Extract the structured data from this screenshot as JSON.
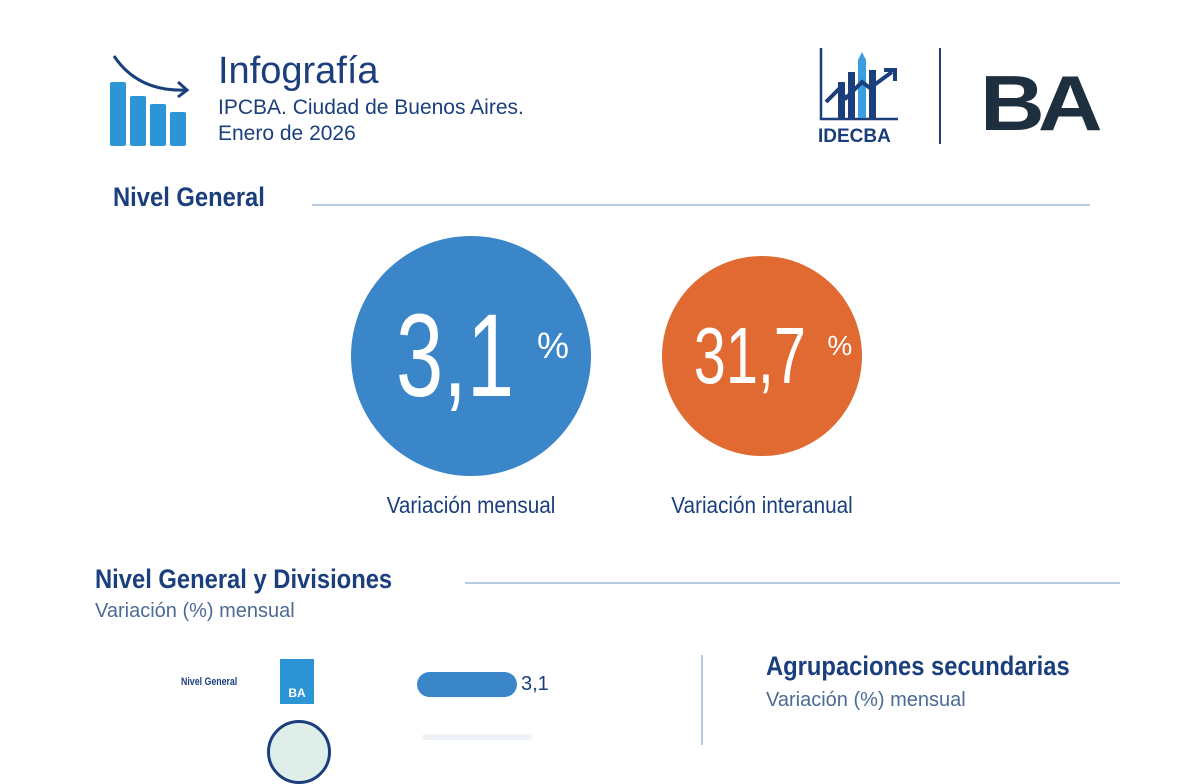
{
  "header": {
    "title": "Infografía",
    "subtitle": "IPCBA. Ciudad de Buenos Aires.",
    "date": "Enero de 2026",
    "logos": {
      "idecba": "IDECBA",
      "ba": "BA"
    }
  },
  "nivel_general": {
    "heading": "Nivel General",
    "monthly": {
      "value": "3,1",
      "unit": "%",
      "label": "Variación mensual",
      "color": "#3a86c8"
    },
    "yearly": {
      "value": "31,7",
      "unit": "%",
      "label": "Variación interanual",
      "color": "#e06a32"
    }
  },
  "divisiones": {
    "heading": "Nivel General y Divisiones",
    "subheading": "Variación (%) mensual"
  },
  "secundarias": {
    "heading": "Agrupaciones secundarias",
    "subheading": "Variación (%) mensual"
  },
  "chart_data": {
    "type": "bar",
    "title": "Nivel General y Divisiones",
    "subtitle": "Variación (%) mensual",
    "categories": [
      "Nivel General"
    ],
    "values": [
      3.1
    ],
    "value_labels": [
      "3,1"
    ],
    "xlim": [
      0,
      3.1
    ],
    "color": "#3a86c8"
  }
}
